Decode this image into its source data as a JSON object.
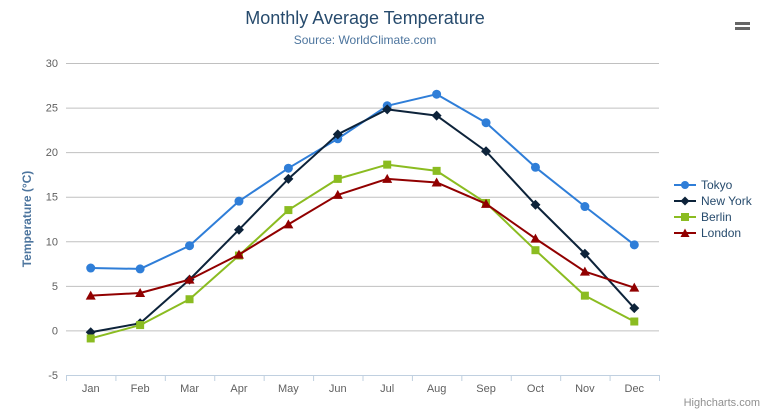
{
  "chart": {
    "credits": "Highcharts.com"
  },
  "icons": {
    "export_button": "hamburger-menu-icon"
  },
  "colors": {
    "title": "#274b6d",
    "subtitle": "#4d759e",
    "axis_title": "#4d759e",
    "axis_labels": "#606060",
    "gridline": "#c0c0c0",
    "axis_line": "#c0d0e0",
    "legend_text": "#274b6d",
    "credits_text": "#909090"
  },
  "chart_data": {
    "type": "line",
    "title": "Monthly Average Temperature",
    "subtitle": "Source: WorldClimate.com",
    "categories": [
      "Jan",
      "Feb",
      "Mar",
      "Apr",
      "May",
      "Jun",
      "Jul",
      "Aug",
      "Sep",
      "Oct",
      "Nov",
      "Dec"
    ],
    "series": [
      {
        "name": "Tokyo",
        "color": "#2f7ed8",
        "marker": "circle",
        "values": [
          7.0,
          6.9,
          9.5,
          14.5,
          18.2,
          21.5,
          25.2,
          26.5,
          23.3,
          18.3,
          13.9,
          9.6
        ]
      },
      {
        "name": "New York",
        "color": "#0d233a",
        "marker": "diamond",
        "values": [
          -0.2,
          0.8,
          5.7,
          11.3,
          17.0,
          22.0,
          24.8,
          24.1,
          20.1,
          14.1,
          8.6,
          2.5
        ]
      },
      {
        "name": "Berlin",
        "color": "#8bbc21",
        "marker": "square",
        "values": [
          -0.9,
          0.6,
          3.5,
          8.4,
          13.5,
          17.0,
          18.6,
          17.9,
          14.3,
          9.0,
          3.9,
          1.0
        ]
      },
      {
        "name": "London",
        "color": "#910000",
        "marker": "triangle",
        "values": [
          3.9,
          4.2,
          5.7,
          8.5,
          11.9,
          15.2,
          17.0,
          16.6,
          14.2,
          10.3,
          6.6,
          4.8
        ]
      }
    ],
    "xlabel": "",
    "ylabel": "Temperature (°C)",
    "ylim": [
      -5,
      30
    ],
    "ytick_step": 5,
    "grid": true,
    "legend_position": "right"
  }
}
